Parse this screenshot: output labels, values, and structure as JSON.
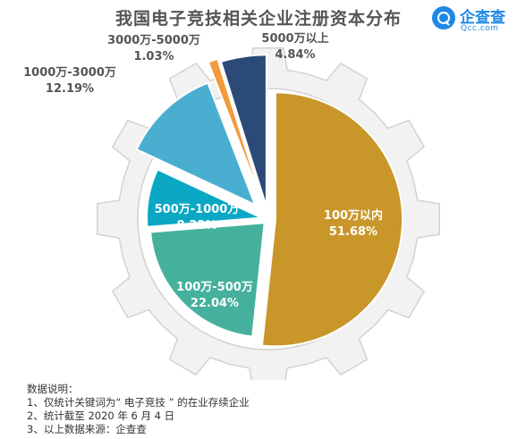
{
  "header": {
    "title": "我国电子竞技相关企业注册资本分布",
    "brand_name": "企查查",
    "brand_sub": "Qcc.com"
  },
  "chart_data": {
    "type": "pie",
    "title": "我国电子竞技相关企业注册资本分布",
    "unit": "%",
    "slices": [
      {
        "label": "100万以内",
        "value": 51.68,
        "value_text": "51.68%",
        "color": "#c9962a"
      },
      {
        "label": "100万-500万",
        "value": 22.04,
        "value_text": "22.04%",
        "color": "#45b09c"
      },
      {
        "label": "500万-1000万",
        "value": 8.22,
        "value_text": "8.22%",
        "color": "#0aa8c4"
      },
      {
        "label": "1000万-3000万",
        "value": 12.19,
        "value_text": "12.19%",
        "color": "#4aaed0"
      },
      {
        "label": "3000万-5000万",
        "value": 1.03,
        "value_text": "1.03%",
        "color": "#f39a3c"
      },
      {
        "label": "5000万以上",
        "value": 4.84,
        "value_text": "4.84%",
        "color": "#2b4a78"
      }
    ]
  },
  "notes": {
    "heading": "数据说明：",
    "lines": [
      "1、仅统计关键词为“ 电子竞技 ” 的在业存续企业",
      "2、统计截至 2020 年 6 月 4 日",
      "3、以上数据来源：企查查"
    ]
  }
}
